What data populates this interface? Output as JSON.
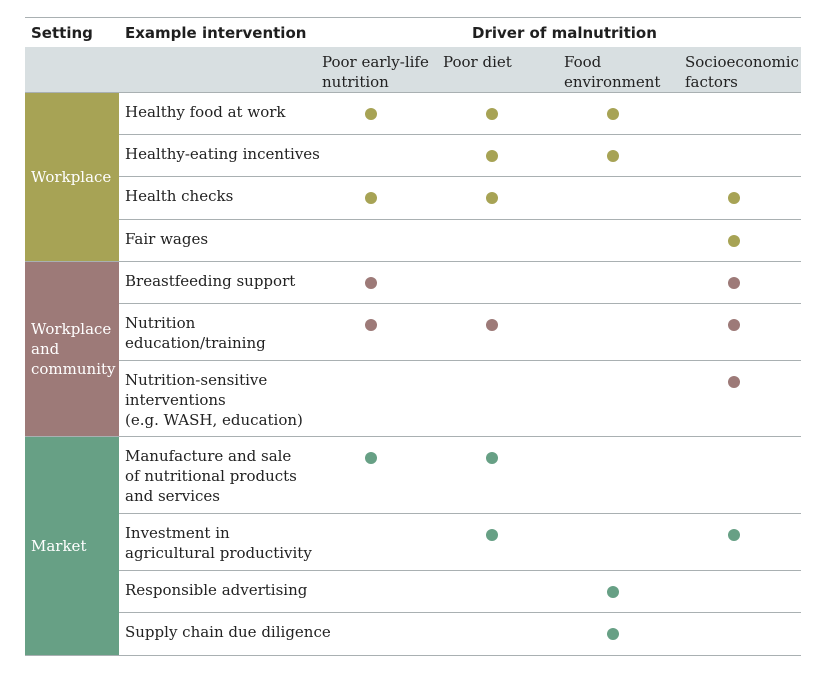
{
  "header": {
    "setting": "Setting",
    "intervention": "Example intervention",
    "driver": "Driver of malnutrition",
    "drivers": [
      "Poor early-life\nnutrition",
      "Poor diet",
      "Food\nenvironment",
      "Socioeconomic\nfactors"
    ]
  },
  "colors": {
    "workplace": "#a7a355",
    "community": "#9d7a78",
    "market": "#67a085",
    "header_band": "#d8dfe1"
  },
  "groups": [
    {
      "label": "Workplace",
      "color": "#a7a355",
      "rows": [
        {
          "label": "Healthy food at work",
          "drivers": [
            true,
            true,
            true,
            false
          ]
        },
        {
          "label": "Healthy-eating incentives",
          "drivers": [
            false,
            true,
            true,
            false
          ]
        },
        {
          "label": "Health checks",
          "drivers": [
            true,
            true,
            false,
            true
          ]
        },
        {
          "label": "Fair wages",
          "drivers": [
            false,
            false,
            false,
            true
          ]
        }
      ]
    },
    {
      "label": "Workplace\nand\ncommunity",
      "color": "#9d7a78",
      "rows": [
        {
          "label": "Breastfeeding support",
          "drivers": [
            true,
            false,
            false,
            true
          ]
        },
        {
          "label": "Nutrition\neducation/training",
          "drivers": [
            true,
            true,
            false,
            true
          ]
        },
        {
          "label": "Nutrition-sensitive\ninterventions\n(e.g. WASH, education)",
          "drivers": [
            false,
            false,
            false,
            true
          ]
        }
      ]
    },
    {
      "label": "Market",
      "color": "#67a085",
      "rows": [
        {
          "label": "Manufacture and sale\nof nutritional products\nand services",
          "drivers": [
            true,
            true,
            false,
            false
          ]
        },
        {
          "label": "Investment in\nagricultural productivity",
          "drivers": [
            false,
            true,
            false,
            true
          ]
        },
        {
          "label": "Responsible advertising",
          "drivers": [
            false,
            false,
            true,
            false
          ]
        },
        {
          "label": "Supply chain due diligence",
          "drivers": [
            false,
            false,
            true,
            false
          ]
        }
      ]
    }
  ]
}
